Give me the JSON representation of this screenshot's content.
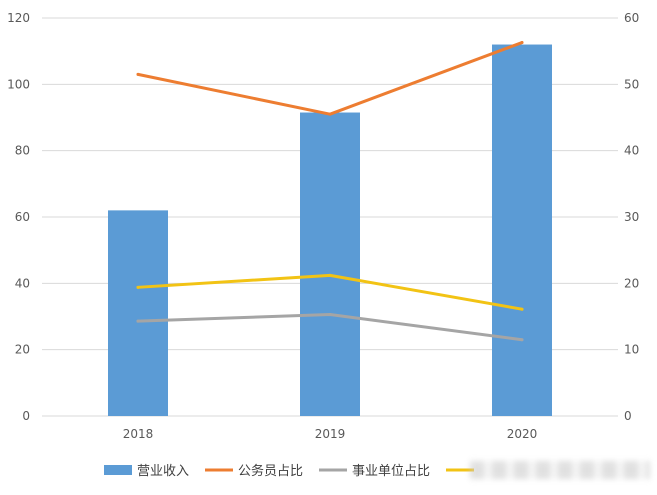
{
  "chart_data": {
    "type": "bar",
    "categories": [
      "2018",
      "2019",
      "2020"
    ],
    "y_left": {
      "ylim": [
        0,
        120
      ],
      "ticks": [
        0,
        20,
        40,
        60,
        80,
        100,
        120
      ]
    },
    "y_right": {
      "ylim": [
        0,
        60
      ],
      "ticks": [
        0,
        10,
        20,
        30,
        40,
        50,
        60
      ]
    },
    "series": [
      {
        "name": "营业收入",
        "kind": "bar",
        "axis": "left",
        "color": "#5b9bd5",
        "values": [
          62,
          91.5,
          112
        ]
      },
      {
        "name": "公务员占比",
        "kind": "line",
        "axis": "right",
        "color": "#ed7d31",
        "values": [
          51.5,
          45.5,
          56.3
        ]
      },
      {
        "name": "事业单位占比",
        "kind": "line",
        "axis": "right",
        "color": "#a5a5a5",
        "values": [
          14.3,
          15.3,
          11.5
        ]
      },
      {
        "name": "",
        "kind": "line",
        "axis": "right",
        "color": "#f2c314",
        "values": [
          19.4,
          21.2,
          16.1
        ]
      }
    ],
    "grid": true,
    "legend": "bottom"
  }
}
